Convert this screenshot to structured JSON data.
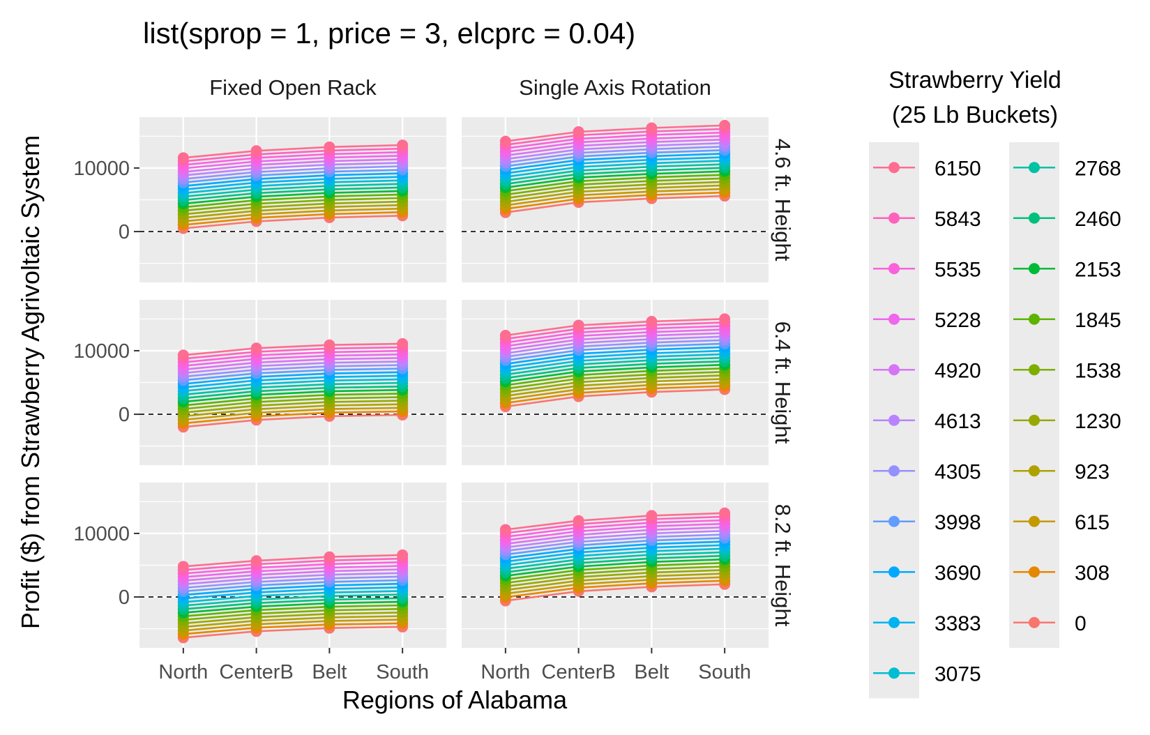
{
  "chart_data": {
    "type": "line",
    "title": "list(sprop = 1, price = 3, elcprc = 0.04)",
    "xlabel": "Regions of Alabama",
    "ylabel": "Profit ($) from Strawberry Agrivoltaic System",
    "categories": [
      "North",
      "CenterB",
      "Belt",
      "South"
    ],
    "ylim": [
      -8000,
      18000
    ],
    "y_ticks": [
      0,
      10000
    ],
    "reference_line_y": 0,
    "grid": true,
    "legend_position": "right",
    "legend_title_lines": [
      "Strawberry Yield",
      "(25 Lb Buckets)"
    ],
    "column_strips": [
      "Fixed Open Rack",
      "Single Axis Rotation"
    ],
    "row_strips": [
      "4.6 ft. Height",
      "6.4 ft. Height",
      "8.2 ft. Height"
    ],
    "series_yields": [
      6150,
      5843,
      5535,
      5228,
      4920,
      4613,
      4305,
      3998,
      3690,
      3383,
      3075,
      2768,
      2460,
      2153,
      1845,
      1538,
      1230,
      923,
      615,
      308,
      0
    ],
    "series_colors": [
      "#FF6C91",
      "#FF62BC",
      "#FA62DB",
      "#EE67EC",
      "#D774F4",
      "#B983FF",
      "#9590FF",
      "#619CFF",
      "#00A9FF",
      "#00B4F0",
      "#00BDD2",
      "#00C1A3",
      "#00BF7D",
      "#00BA38",
      "#5EB300",
      "#7CAE00",
      "#97A800",
      "#AEA200",
      "#C49A00",
      "#E58700",
      "#F8766D"
    ],
    "panels": [
      {
        "row": 0,
        "col": 0,
        "yield_0": [
          500,
          1600,
          2200,
          2500
        ],
        "yield_6150": [
          11600,
          12700,
          13300,
          13600
        ]
      },
      {
        "row": 0,
        "col": 1,
        "yield_0": [
          3000,
          4600,
          5200,
          5600
        ],
        "yield_6150": [
          14200,
          15700,
          16300,
          16700
        ]
      },
      {
        "row": 1,
        "col": 0,
        "yield_0": [
          -2000,
          -900,
          -300,
          -100
        ],
        "yield_6150": [
          9300,
          10400,
          10900,
          11100
        ]
      },
      {
        "row": 1,
        "col": 1,
        "yield_0": [
          1200,
          2800,
          3500,
          3900
        ],
        "yield_6150": [
          12400,
          14000,
          14600,
          15000
        ]
      },
      {
        "row": 2,
        "col": 0,
        "yield_0": [
          -6400,
          -5400,
          -4900,
          -4700
        ],
        "yield_6150": [
          4800,
          5700,
          6300,
          6600
        ]
      },
      {
        "row": 2,
        "col": 1,
        "yield_0": [
          -600,
          900,
          1600,
          2000
        ],
        "yield_6150": [
          10600,
          12000,
          12800,
          13200
        ]
      }
    ]
  }
}
